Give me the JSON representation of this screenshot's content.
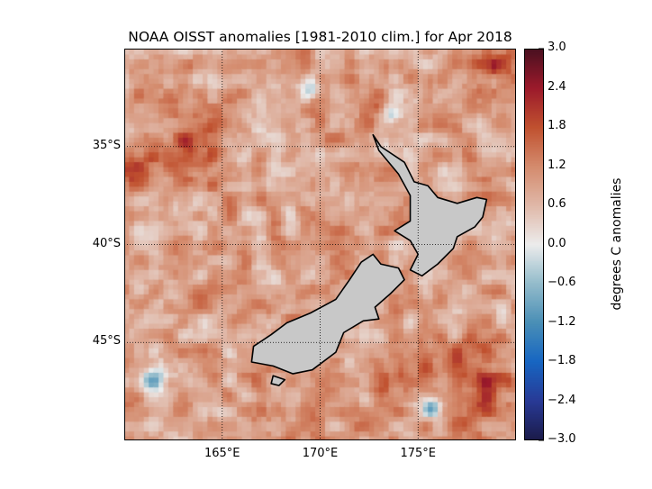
{
  "title": "NOAA OISST anomalies [1981-2010 clim.] for Apr 2018",
  "chart_data": {
    "type": "heatmap",
    "title": "NOAA OISST anomalies [1981-2010 clim.] for Apr 2018",
    "lon_range": [
      160,
      180
    ],
    "lat_range": [
      -50,
      -30
    ],
    "lat_ticks": [
      {
        "value": -35,
        "label": "35°S"
      },
      {
        "value": -40,
        "label": "40°S"
      },
      {
        "value": -45,
        "label": "45°S"
      }
    ],
    "lon_ticks": [
      {
        "value": 165,
        "label": "165°E"
      },
      {
        "value": 170,
        "label": "170°E"
      },
      {
        "value": 175,
        "label": "175°E"
      }
    ],
    "colorbar": {
      "label": "degrees C anomalies",
      "range": [
        -3.0,
        3.0
      ],
      "ticks": [
        "3.0",
        "2.4",
        "1.8",
        "1.2",
        "0.6",
        "0.0",
        "−0.6",
        "−1.2",
        "−1.8",
        "−2.4",
        "−3.0"
      ],
      "tick_values": [
        3.0,
        2.4,
        1.8,
        1.2,
        0.6,
        0.0,
        -0.6,
        -1.2,
        -1.8,
        -2.4,
        -3.0
      ]
    },
    "land_color": "#c8c8c8",
    "grid": "dotted"
  }
}
